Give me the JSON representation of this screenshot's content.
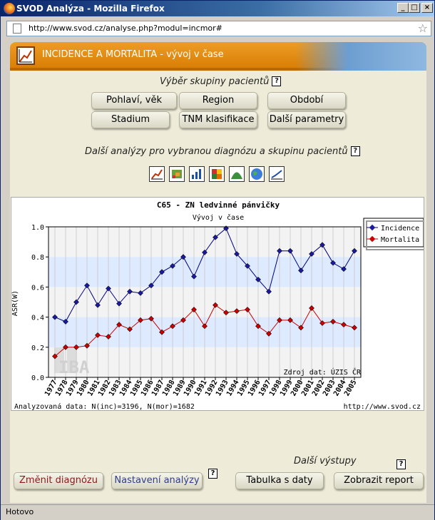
{
  "window": {
    "title": "SVOD Analýza - Mozilla Firefox",
    "url": "http://www.svod.cz/analyse.php?modul=incmor#",
    "status": "Hotovo"
  },
  "header": {
    "title": "INCIDENCE A MORTALITA - vývoj v čase"
  },
  "patient_group": {
    "title": "Výběr skupiny pacientů",
    "help": "?",
    "buttons": [
      "Pohlaví, věk",
      "Region",
      "Období",
      "Stadium",
      "TNM klasifikace",
      "Další parametry"
    ]
  },
  "analyses": {
    "title": "Další analýzy pro vybranou diagnózu a skupinu pacientů",
    "help": "?",
    "icons": [
      "line-chart-icon",
      "map-chart-icon",
      "bar-chart-icon",
      "color-grid-icon",
      "area-chart-icon",
      "globe-icon",
      "trend-chart-icon"
    ]
  },
  "chart_data": {
    "type": "line",
    "title": "C65 - ZN ledvinné pánvičky",
    "subtitle": "Vývoj v čase",
    "ylabel": "ASR(W)",
    "ylim": [
      0,
      1.0
    ],
    "yticks": [
      "0.0",
      "0.2",
      "0.4",
      "0.6",
      "0.8",
      "1.0"
    ],
    "x": [
      "1977",
      "1978",
      "1979",
      "1980",
      "1981",
      "1982",
      "1983",
      "1984",
      "1985",
      "1986",
      "1987",
      "1988",
      "1989",
      "1990",
      "1991",
      "1992",
      "1993",
      "1994",
      "1995",
      "1996",
      "1997",
      "1998",
      "1999",
      "2000",
      "2001",
      "2002",
      "2003",
      "2004",
      "2005"
    ],
    "series": [
      {
        "name": "Incidence",
        "color": "#000080",
        "marker_color": "#1a1aa0",
        "values": [
          0.4,
          0.37,
          0.5,
          0.61,
          0.48,
          0.59,
          0.49,
          0.57,
          0.56,
          0.61,
          0.7,
          0.74,
          0.8,
          0.67,
          0.83,
          0.93,
          0.99,
          0.82,
          0.74,
          0.65,
          0.57,
          0.84,
          0.84,
          0.71,
          0.82,
          0.88,
          0.76,
          0.72,
          0.84
        ]
      },
      {
        "name": "Mortalita",
        "color": "#cc0000",
        "marker_color": "#cc0000",
        "values": [
          0.14,
          0.2,
          0.2,
          0.21,
          0.28,
          0.27,
          0.35,
          0.32,
          0.38,
          0.39,
          0.3,
          0.34,
          0.38,
          0.45,
          0.34,
          0.48,
          0.43,
          0.44,
          0.45,
          0.34,
          0.29,
          0.38,
          0.38,
          0.33,
          0.46,
          0.36,
          0.37,
          0.35,
          0.33
        ]
      }
    ],
    "grid": true,
    "legend": "top-right",
    "source_note": "Zdroj dat: ÚZIS ČR",
    "footer_left": "Analyzovaná data: N(inc)=3196, N(mor)=1682",
    "footer_right": "http://www.svod.cz",
    "watermark": "IBA"
  },
  "bottom": {
    "more_outputs": "Další výstupy",
    "help": "?",
    "change_diagnosis": "Změnit diagnózu",
    "analysis_settings": "Nastavení analýzy",
    "data_table": "Tabulka s daty",
    "show_report": "Zobrazit report"
  }
}
